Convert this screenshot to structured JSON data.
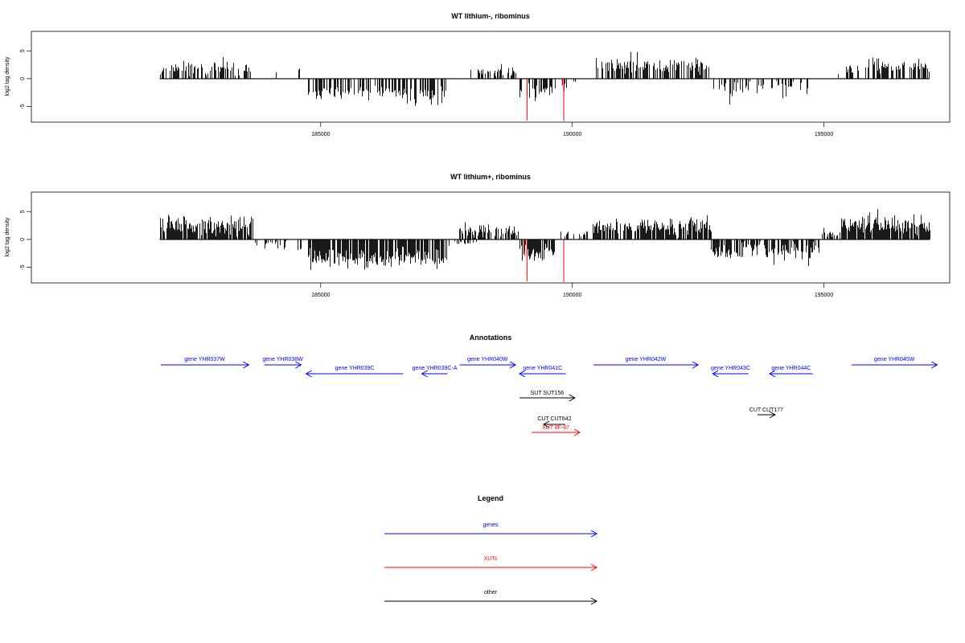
{
  "panels": [
    {
      "title": "WT lithium-, ribominus",
      "ylabel": "log2 tag density",
      "yticks": [
        -5,
        0,
        5
      ],
      "xticks": [
        "185000",
        "190000",
        "195000"
      ],
      "ylim": [
        -7.8,
        8.5
      ],
      "xlim": [
        179250,
        197500
      ],
      "seed": 11,
      "scale": 0.85,
      "blocks": [
        {
          "x0": 181800,
          "x1": 183600,
          "mean": 2.2,
          "sd": 1.0,
          "density": 0.55
        },
        {
          "x0": 184050,
          "x1": 184200,
          "mean": 1.2,
          "sd": 0.6,
          "density": 0.3
        },
        {
          "x0": 184550,
          "x1": 184570,
          "mean": 1.8,
          "sd": 0.3,
          "density": 1.0
        },
        {
          "x0": 184750,
          "x1": 186700,
          "mean": -3.0,
          "sd": 1.0,
          "density": 0.6
        },
        {
          "x0": 186700,
          "x1": 187500,
          "mean": -3.6,
          "sd": 1.2,
          "density": 0.55
        },
        {
          "x0": 187950,
          "x1": 188900,
          "mean": 1.6,
          "sd": 0.8,
          "density": 0.4
        },
        {
          "x0": 188950,
          "x1": 189600,
          "mean": -2.4,
          "sd": 0.9,
          "density": 0.55
        },
        {
          "x0": 189650,
          "x1": 190050,
          "mean": -1.6,
          "sd": 0.8,
          "density": 0.35
        },
        {
          "x0": 190450,
          "x1": 192700,
          "mean": 2.6,
          "sd": 1.0,
          "density": 0.6
        },
        {
          "x0": 192800,
          "x1": 193800,
          "mean": -2.2,
          "sd": 1.0,
          "density": 0.4
        },
        {
          "x0": 193950,
          "x1": 194800,
          "mean": -1.6,
          "sd": 0.8,
          "density": 0.3
        },
        {
          "x0": 195200,
          "x1": 195300,
          "mean": 1.0,
          "sd": 0.5,
          "density": 0.3
        },
        {
          "x0": 195400,
          "x1": 197100,
          "mean": 2.5,
          "sd": 1.0,
          "density": 0.6
        }
      ],
      "red_bars": [
        {
          "x": 189100,
          "y": -7.5
        },
        {
          "x": 189830,
          "y": -7.6
        },
        {
          "x": 189800,
          "y": -1.2
        }
      ]
    },
    {
      "title": "WT lithium+, ribominus",
      "ylabel": "log2 tag density",
      "yticks": [
        -5,
        0,
        5
      ],
      "xticks": [
        "185000",
        "190000",
        "195000"
      ],
      "ylim": [
        -7.8,
        8.5
      ],
      "xlim": [
        179250,
        197500
      ],
      "seed": 29,
      "scale": 0.95,
      "blocks": [
        {
          "x0": 181800,
          "x1": 183650,
          "mean": 2.6,
          "sd": 1.1,
          "density": 0.85
        },
        {
          "x0": 183700,
          "x1": 184300,
          "mean": -0.8,
          "sd": 0.7,
          "density": 0.3
        },
        {
          "x0": 184500,
          "x1": 184600,
          "mean": -1.6,
          "sd": 0.5,
          "density": 0.5
        },
        {
          "x0": 184750,
          "x1": 187000,
          "mean": -3.4,
          "sd": 1.2,
          "density": 0.85
        },
        {
          "x0": 187000,
          "x1": 187500,
          "mean": -3.6,
          "sd": 1.3,
          "density": 0.7
        },
        {
          "x0": 187550,
          "x1": 188100,
          "mean": -0.6,
          "sd": 0.4,
          "density": 0.3
        },
        {
          "x0": 187750,
          "x1": 188950,
          "mean": 1.6,
          "sd": 0.8,
          "density": 0.6
        },
        {
          "x0": 188950,
          "x1": 189650,
          "mean": -2.6,
          "sd": 1.0,
          "density": 0.8
        },
        {
          "x0": 189700,
          "x1": 190300,
          "mean": 1.0,
          "sd": 0.8,
          "density": 0.4
        },
        {
          "x0": 190400,
          "x1": 192750,
          "mean": 2.4,
          "sd": 1.0,
          "density": 0.85
        },
        {
          "x0": 192750,
          "x1": 193350,
          "mean": -2.5,
          "sd": 1.0,
          "density": 0.8
        },
        {
          "x0": 193350,
          "x1": 193900,
          "mean": -1.6,
          "sd": 1.0,
          "density": 0.6
        },
        {
          "x0": 193950,
          "x1": 194900,
          "mean": -2.0,
          "sd": 1.0,
          "density": 0.7
        },
        {
          "x0": 194950,
          "x1": 195350,
          "mean": 0.8,
          "sd": 0.6,
          "density": 0.5
        },
        {
          "x0": 195350,
          "x1": 197100,
          "mean": 2.6,
          "sd": 1.1,
          "density": 0.85
        }
      ],
      "red_bars": [
        {
          "x": 189100,
          "y": -7.5
        },
        {
          "x": 189830,
          "y": -7.6
        },
        {
          "x": 189050,
          "y": -3.0
        }
      ]
    }
  ],
  "annotations": {
    "title": "Annotations",
    "xlim": [
      179250,
      197500
    ],
    "features": [
      {
        "label": "gene YHR037W",
        "start": 181820,
        "end": 183570,
        "dir": "+",
        "row": 1,
        "kind": "gene"
      },
      {
        "label": "gene YHR038W",
        "start": 183880,
        "end": 184610,
        "dir": "+",
        "row": 1,
        "kind": "gene"
      },
      {
        "label": "gene YHR039C",
        "start": 184710,
        "end": 186640,
        "dir": "-",
        "row": 2,
        "kind": "gene"
      },
      {
        "label": "gene YHR039C-A",
        "start": 187010,
        "end": 187520,
        "dir": "-",
        "row": 2,
        "kind": "gene"
      },
      {
        "label": "gene YHR040W",
        "start": 187760,
        "end": 188870,
        "dir": "+",
        "row": 1,
        "kind": "gene"
      },
      {
        "label": "gene YHR041C",
        "start": 188950,
        "end": 189870,
        "dir": "-",
        "row": 2,
        "kind": "gene"
      },
      {
        "label": "gene YHR042W",
        "start": 190420,
        "end": 192500,
        "dir": "+",
        "row": 1,
        "kind": "gene"
      },
      {
        "label": "gene YHR043C",
        "start": 192790,
        "end": 193500,
        "dir": "-",
        "row": 2,
        "kind": "gene"
      },
      {
        "label": "gene YHR044C",
        "start": 193920,
        "end": 194780,
        "dir": "-",
        "row": 2,
        "kind": "gene"
      },
      {
        "label": "gene YHR045W",
        "start": 195550,
        "end": 197250,
        "dir": "+",
        "row": 1,
        "kind": "gene"
      },
      {
        "label": "SUT SUT156",
        "start": 188950,
        "end": 190050,
        "dir": "+",
        "row": 3,
        "kind": "other"
      },
      {
        "label": "CUT CUT642",
        "start": 189430,
        "end": 189860,
        "dir": "-",
        "row": 4,
        "kind": "other"
      },
      {
        "label": "XUT 8F-87",
        "start": 189190,
        "end": 190150,
        "dir": "+",
        "row": 5,
        "kind": "xut"
      },
      {
        "label": "CUT CUT177",
        "start": 193680,
        "end": 194030,
        "dir": "+",
        "row": 6,
        "kind": "other"
      }
    ]
  },
  "legend": {
    "title": "Legend",
    "items": [
      {
        "label": "genes",
        "color": "#0000ff"
      },
      {
        "label": "XUTs",
        "color": "#ff0000"
      },
      {
        "label": "other",
        "color": "#000000"
      }
    ]
  },
  "colors": {
    "gene": "#0000ff",
    "xut": "#ff0000",
    "other": "#000000",
    "signal": "#000000",
    "highlight": "#ff0000"
  }
}
